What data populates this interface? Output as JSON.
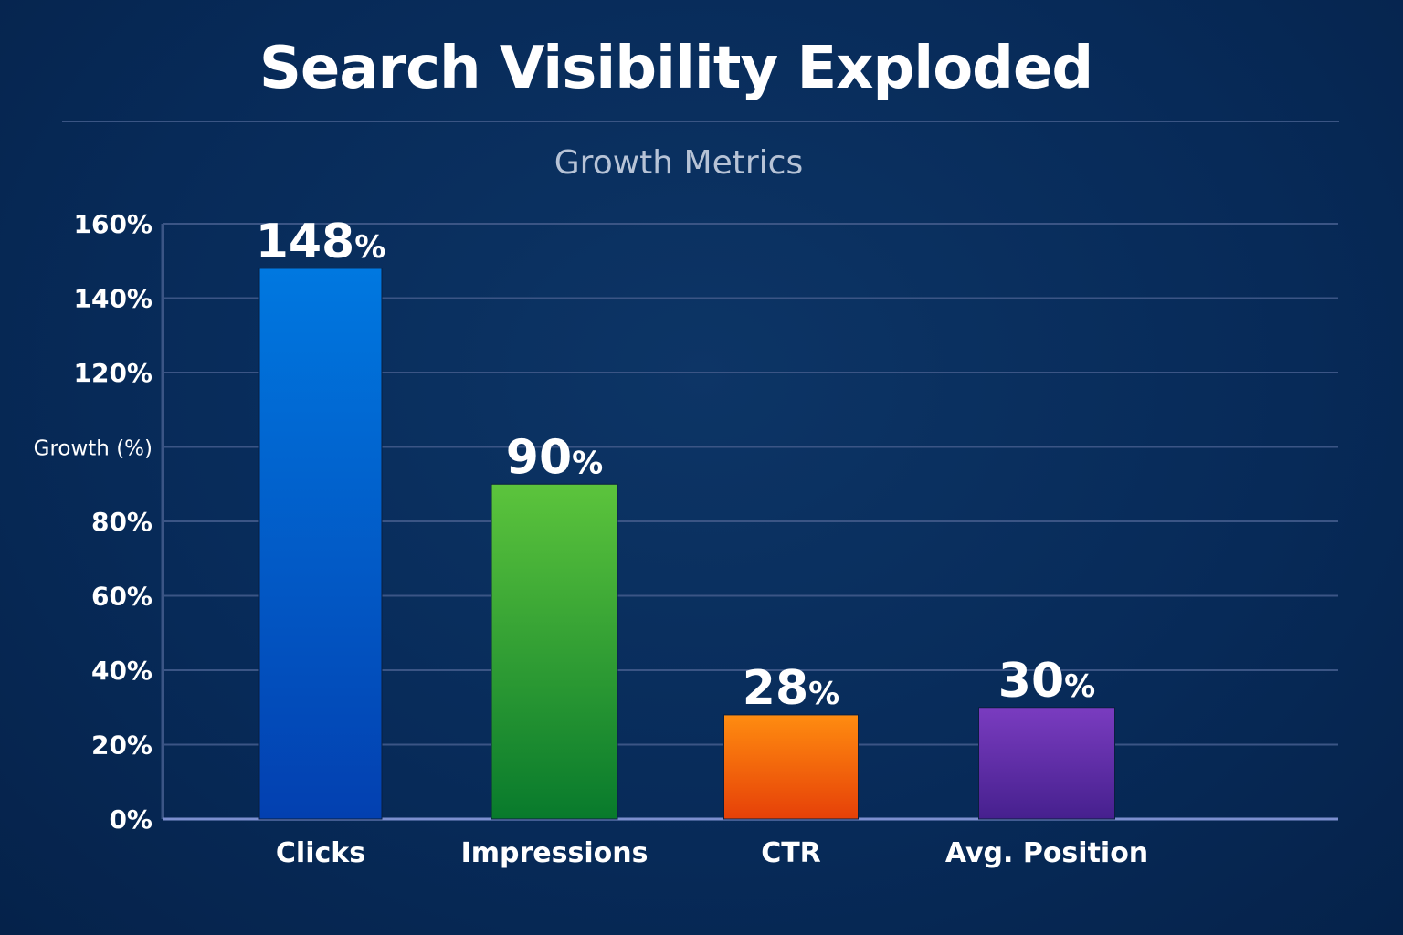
{
  "chart_data": {
    "type": "bar",
    "title": "Search Visibility Exploded",
    "subtitle": "Growth Metrics",
    "xlabel": "",
    "ylabel": "Growth (%)",
    "ylim": [
      0,
      160
    ],
    "yticks": [
      "0%",
      "20%",
      "40%",
      "60%",
      "80%",
      "100%",
      "120%",
      "140%",
      "160%"
    ],
    "ytick_values": [
      0,
      20,
      40,
      60,
      80,
      100,
      120,
      140,
      160
    ],
    "grid": true,
    "categories": [
      "Clicks",
      "Impressions",
      "CTR",
      "Avg. Position"
    ],
    "values": [
      148,
      90,
      28,
      30
    ],
    "data_labels": [
      "148",
      "90",
      "28",
      "30"
    ],
    "data_label_suffix": "%",
    "colors": [
      [
        "#0078e0",
        "#0340b0"
      ],
      [
        "#5cc43c",
        "#087a2c"
      ],
      [
        "#ff8c10",
        "#e64008"
      ],
      [
        "#7a3cc0",
        "#46208e"
      ]
    ]
  }
}
